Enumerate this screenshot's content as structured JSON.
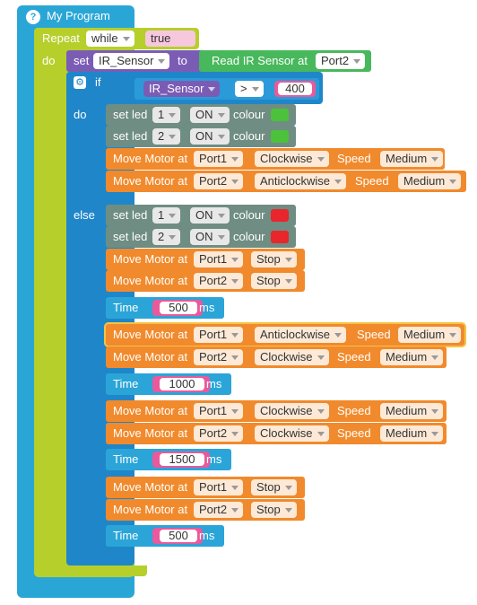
{
  "program": {
    "help_icon": "?",
    "title": "My Program"
  },
  "loop": {
    "repeat_label": "Repeat",
    "while_option": "while",
    "condition_value": "true",
    "do_label": "do"
  },
  "set_block": {
    "set_label": "set",
    "variable": "IR_Sensor",
    "to_label": "to",
    "sensor_label": "Read IR Sensor at",
    "port": "Port2"
  },
  "if_block": {
    "gear_icon": "gear-icon",
    "if_label": "if",
    "variable": "IR_Sensor",
    "operator": ">",
    "value": "400",
    "do_label": "do",
    "else_label": "else"
  },
  "led_blocks": [
    {
      "set_led_label": "set led",
      "led": "1",
      "state": "ON",
      "colour_label": "colour",
      "colour": "#4cc13c"
    },
    {
      "set_led_label": "set led",
      "led": "2",
      "state": "ON",
      "colour_label": "colour",
      "colour": "#4cc13c"
    },
    {
      "set_led_label": "set led",
      "led": "1",
      "state": "ON",
      "colour_label": "colour",
      "colour": "#e8262c"
    },
    {
      "set_led_label": "set led",
      "led": "2",
      "state": "ON",
      "colour_label": "colour",
      "colour": "#e8262c"
    }
  ],
  "motor_label": "Move Motor at",
  "speed_label": "Speed",
  "motors": [
    {
      "port": "Port1",
      "direction": "Clockwise",
      "speed": "Medium"
    },
    {
      "port": "Port2",
      "direction": "Anticlockwise",
      "speed": "Medium"
    },
    {
      "port": "Port1",
      "direction": "Stop"
    },
    {
      "port": "Port2",
      "direction": "Stop"
    },
    {
      "port": "Port1",
      "direction": "Anticlockwise",
      "speed": "Medium"
    },
    {
      "port": "Port2",
      "direction": "Clockwise",
      "speed": "Medium"
    },
    {
      "port": "Port1",
      "direction": "Clockwise",
      "speed": "Medium"
    },
    {
      "port": "Port2",
      "direction": "Clockwise",
      "speed": "Medium"
    },
    {
      "port": "Port1",
      "direction": "Stop"
    },
    {
      "port": "Port2",
      "direction": "Stop"
    }
  ],
  "time_label": "Time",
  "ms_label": "ms",
  "times": [
    "500",
    "1000",
    "1500",
    "500"
  ]
}
